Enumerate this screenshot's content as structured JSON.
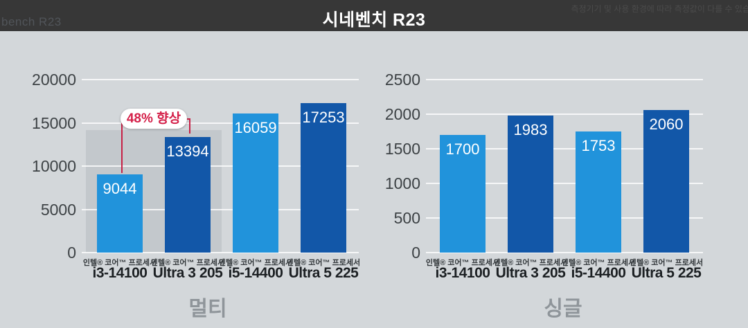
{
  "header": {
    "watermark": "bench R23",
    "title": "시네벤치 R23",
    "disclaimer": "측정기기 및 사용 환경에 따라 측정값이 다를 수 있습니"
  },
  "colors": {
    "background": "#d3d7da",
    "header_bar": "#373737",
    "bar_light_blue": "#2193db",
    "bar_dark_blue": "#1257a8",
    "annotation_red": "#c72045",
    "highlight_gray": "#c3c8cc",
    "gridline_white": "#eceeef"
  },
  "chart_data": [
    {
      "type": "bar",
      "title": "멀티",
      "ylim": [
        0,
        20000
      ],
      "ytick_step": 5000,
      "yticks": [
        "0",
        "5000",
        "10000",
        "15000",
        "20000"
      ],
      "grid": true,
      "legend_position": "none",
      "category_brand": "인텔® 코어™ 프로세서",
      "categories": [
        "i3-14100",
        "Ultra 3 205",
        "i5-14400",
        "Ultra 5 225"
      ],
      "values": [
        9044,
        13394,
        16059,
        17253
      ],
      "bar_colors": [
        "#2193db",
        "#1257a8",
        "#2193db",
        "#1257a8"
      ],
      "highlight_bars": [
        0,
        1
      ],
      "annotation": {
        "text": "48% 향상",
        "from_bar": 0,
        "to_bar": 1
      }
    },
    {
      "type": "bar",
      "title": "싱글",
      "ylim": [
        0,
        2500
      ],
      "ytick_step": 500,
      "yticks": [
        "0",
        "500",
        "1000",
        "1500",
        "2000",
        "2500"
      ],
      "grid": true,
      "legend_position": "none",
      "category_brand": "인텔® 코어™ 프로세서",
      "categories": [
        "i3-14100",
        "Ultra 3 205",
        "i5-14400",
        "Ultra 5 225"
      ],
      "values": [
        1700,
        1983,
        1753,
        2060
      ],
      "bar_colors": [
        "#2193db",
        "#1257a8",
        "#2193db",
        "#1257a8"
      ]
    }
  ]
}
